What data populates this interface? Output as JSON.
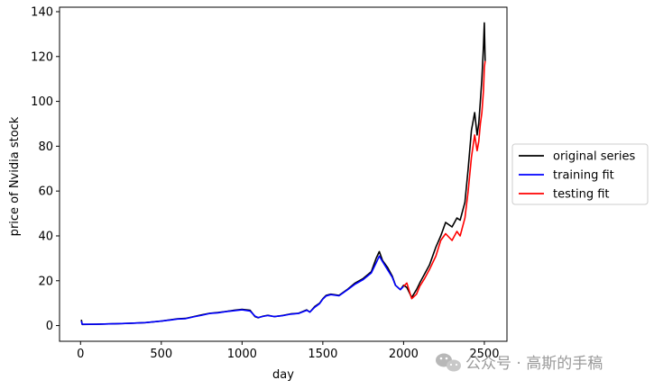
{
  "chart_data": {
    "type": "line",
    "xlabel": "day",
    "ylabel": "price of Nvidia stock",
    "xlim": [
      -130,
      2640
    ],
    "ylim": [
      -7,
      142
    ],
    "xticks": [
      0,
      500,
      1000,
      1500,
      2000,
      2500
    ],
    "yticks": [
      0,
      20,
      40,
      60,
      80,
      100,
      120,
      140
    ],
    "grid": false,
    "legend_position": "center-right outside",
    "series": [
      {
        "name": "original series",
        "color": "#000000",
        "x": [
          5,
          10,
          100,
          200,
          300,
          400,
          500,
          560,
          600,
          650,
          700,
          750,
          800,
          850,
          900,
          950,
          1000,
          1050,
          1080,
          1100,
          1130,
          1160,
          1200,
          1250,
          1300,
          1350,
          1400,
          1420,
          1450,
          1480,
          1500,
          1520,
          1550,
          1600,
          1650,
          1700,
          1750,
          1800,
          1830,
          1850,
          1870,
          1900,
          1930,
          1950,
          1980,
          2000,
          2020,
          2050,
          2080,
          2100,
          2130,
          2160,
          2200,
          2230,
          2260,
          2300,
          2330,
          2350,
          2380,
          2400,
          2420,
          2440,
          2455,
          2465,
          2475,
          2485,
          2495,
          2500,
          2505
        ],
        "y": [
          2.6,
          0.5,
          0.6,
          0.8,
          1.0,
          1.3,
          2.0,
          2.6,
          3.0,
          3.2,
          4.0,
          4.8,
          5.5,
          5.8,
          6.3,
          6.8,
          7.2,
          6.8,
          4.0,
          3.5,
          4.2,
          4.6,
          4.0,
          4.5,
          5.2,
          5.5,
          7.0,
          6.0,
          8.5,
          10.0,
          12.0,
          13.5,
          14.0,
          13.5,
          16.0,
          19.0,
          21.0,
          24.0,
          30.0,
          33.0,
          29.0,
          26.0,
          22.0,
          18.0,
          16.0,
          18.0,
          17.0,
          12.5,
          16.0,
          19.0,
          23.0,
          27.0,
          35.0,
          40.0,
          46.0,
          44.0,
          48.0,
          47.0,
          55.0,
          70.0,
          87.0,
          95.0,
          85.0,
          90.0,
          100.0,
          110.0,
          125.0,
          135.0,
          118.0
        ]
      },
      {
        "name": "training fit",
        "color": "#0000ff",
        "x": [
          5,
          10,
          100,
          200,
          300,
          400,
          500,
          560,
          600,
          650,
          700,
          750,
          800,
          850,
          900,
          950,
          1000,
          1050,
          1080,
          1100,
          1130,
          1160,
          1200,
          1250,
          1300,
          1350,
          1400,
          1420,
          1450,
          1480,
          1500,
          1520,
          1550,
          1600,
          1650,
          1700,
          1750,
          1800,
          1830,
          1850,
          1870,
          1900,
          1930,
          1950,
          1980,
          2000
        ],
        "y": [
          2.0,
          0.6,
          0.6,
          0.8,
          1.0,
          1.3,
          2.0,
          2.5,
          2.9,
          3.1,
          3.9,
          4.6,
          5.4,
          5.7,
          6.2,
          6.6,
          7.0,
          6.5,
          4.2,
          3.6,
          4.1,
          4.5,
          4.0,
          4.4,
          5.1,
          5.4,
          6.8,
          6.0,
          8.2,
          9.8,
          11.8,
          13.2,
          13.8,
          13.3,
          15.8,
          18.5,
          20.5,
          23.5,
          28.0,
          31.0,
          28.5,
          25.0,
          21.5,
          18.0,
          16.0,
          17.5
        ]
      },
      {
        "name": "testing fit",
        "color": "#ff0000",
        "x": [
          2000,
          2020,
          2050,
          2080,
          2100,
          2130,
          2160,
          2200,
          2230,
          2260,
          2300,
          2330,
          2350,
          2380,
          2400,
          2420,
          2440,
          2455,
          2465,
          2475,
          2485,
          2495,
          2500,
          2505
        ],
        "y": [
          17.5,
          19.0,
          12.0,
          14.0,
          17.5,
          21.0,
          25.0,
          31.0,
          38.0,
          41.0,
          38.0,
          42.0,
          40.0,
          48.0,
          60.0,
          75.0,
          85.0,
          78.0,
          82.0,
          90.0,
          95.0,
          105.0,
          115.0,
          118.0
        ]
      }
    ]
  },
  "watermark": {
    "text": "公众号 · 高斯的手稿",
    "icon": "wechat-icon"
  }
}
